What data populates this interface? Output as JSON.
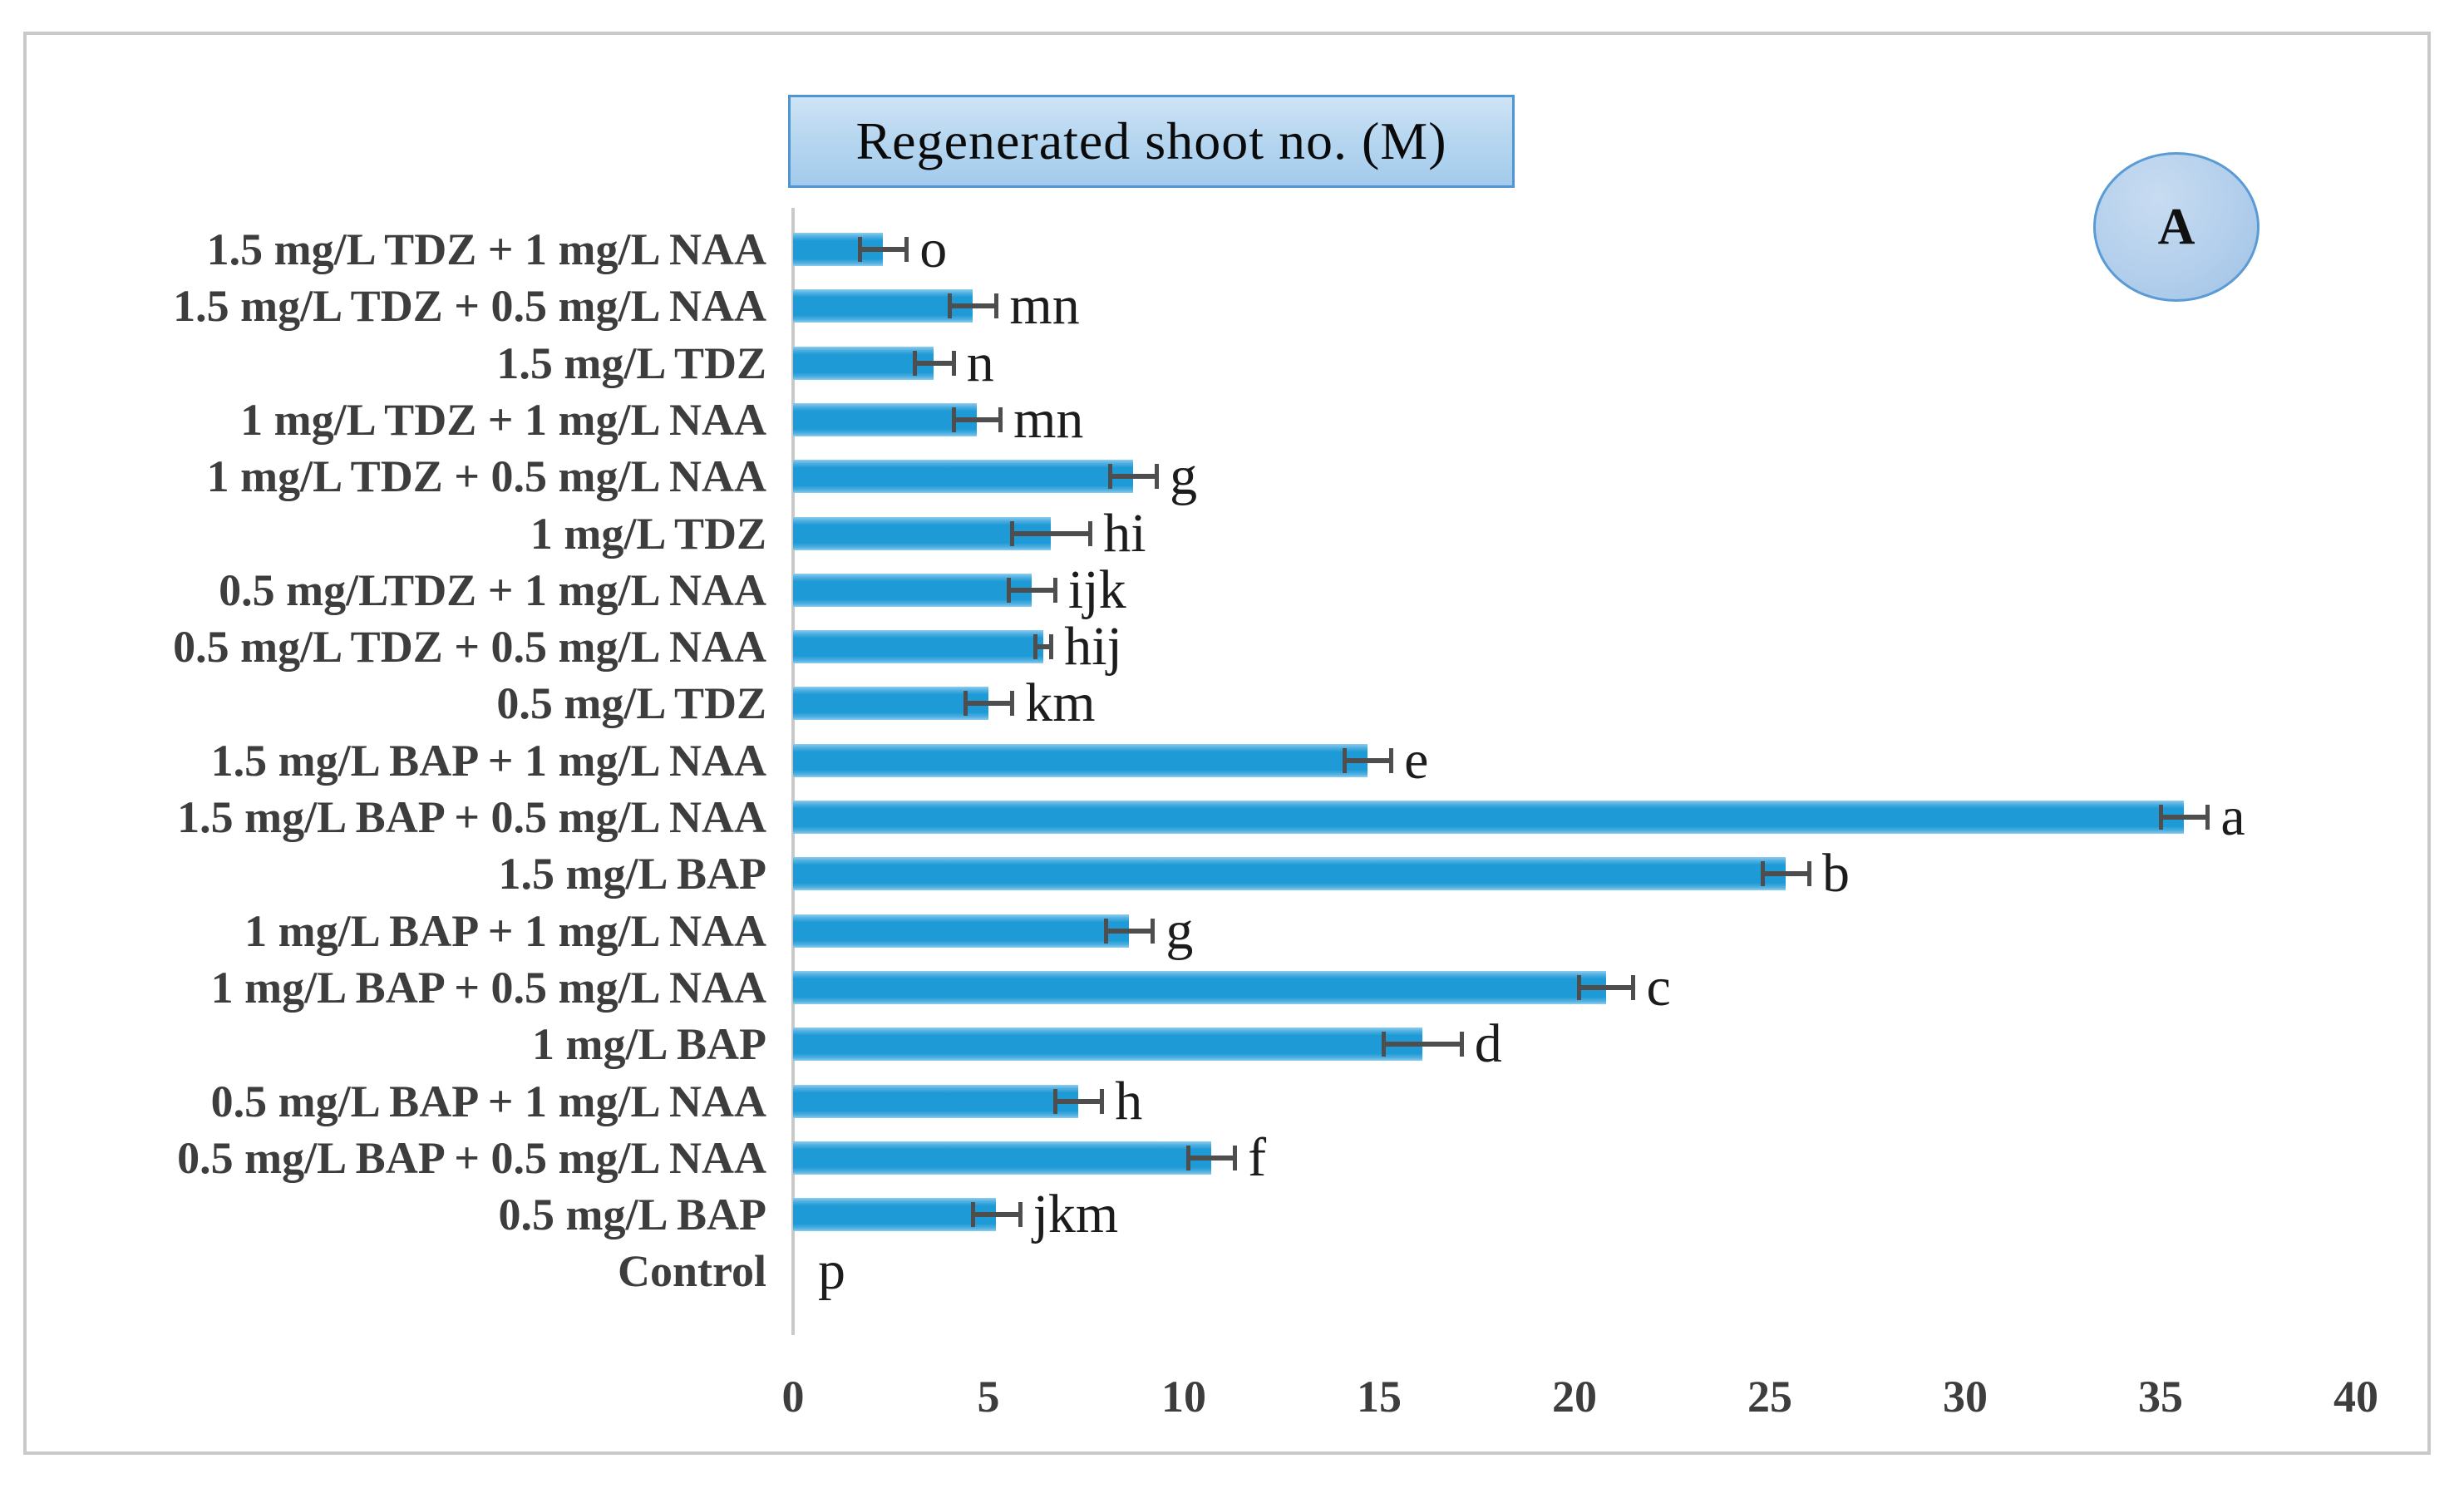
{
  "figure": {
    "panel_label": "A",
    "border_color": "#c9c9c9"
  },
  "colors": {
    "bar_fill": "#1e9ad6",
    "error_bar": "#4e4e4e",
    "label_text": "#3d3d3d",
    "title_box_border": "#4f96d3",
    "title_box_fill": "#b7d7f0",
    "badge_border": "#5b9bd5",
    "badge_fill": "#b3cfec"
  },
  "chart_data": {
    "type": "bar",
    "orientation": "horizontal",
    "title": "Regenerated shoot no. (M)",
    "xlabel": "",
    "ylabel": "",
    "xlim": [
      0,
      40
    ],
    "xticks": [
      "0",
      "5",
      "10",
      "15",
      "20",
      "25",
      "30",
      "35",
      "40"
    ],
    "grid": false,
    "legend_position": "top",
    "categories": [
      "1.5 mg/L TDZ + 1 mg/L NAA",
      "1.5 mg/L TDZ + 0.5 mg/L NAA",
      "1.5 mg/L TDZ",
      "1 mg/L TDZ + 1 mg/L NAA",
      "1 mg/L TDZ + 0.5 mg/L NAA",
      "1 mg/L TDZ",
      "0.5 mg/LTDZ + 1 mg/L NAA",
      "0.5 mg/L TDZ + 0.5 mg/L NAA",
      "0.5 mg/L TDZ",
      "1.5 mg/L BAP + 1 mg/L NAA",
      "1.5 mg/L BAP + 0.5 mg/L NAA",
      "1.5 mg/L BAP",
      "1 mg/L BAP + 1 mg/L NAA",
      "1 mg/L BAP + 0.5 mg/L NAA",
      "1 mg/L BAP",
      "0.5 mg/L BAP + 1 mg/L NAA",
      "0.5 mg/L BAP + 0.5 mg/L NAA",
      "0.5 mg/L BAP",
      "Control"
    ],
    "values": [
      2.3,
      4.6,
      3.6,
      4.7,
      8.7,
      6.6,
      6.1,
      6.4,
      5.0,
      14.7,
      35.6,
      25.4,
      8.6,
      20.8,
      16.1,
      7.3,
      10.7,
      5.2,
      0
    ],
    "errors": [
      0.6,
      0.6,
      0.5,
      0.6,
      0.6,
      1.0,
      0.6,
      0.2,
      0.6,
      0.6,
      0.6,
      0.6,
      0.6,
      0.7,
      1.0,
      0.6,
      0.6,
      0.6,
      0
    ],
    "sig_letters": [
      "o",
      "mn",
      "n",
      "mn",
      "g",
      "hi",
      "ijk",
      "hij",
      "km",
      "e",
      "a",
      "b",
      "g",
      "c",
      "d",
      "h",
      "f",
      "jkm",
      "p"
    ]
  }
}
